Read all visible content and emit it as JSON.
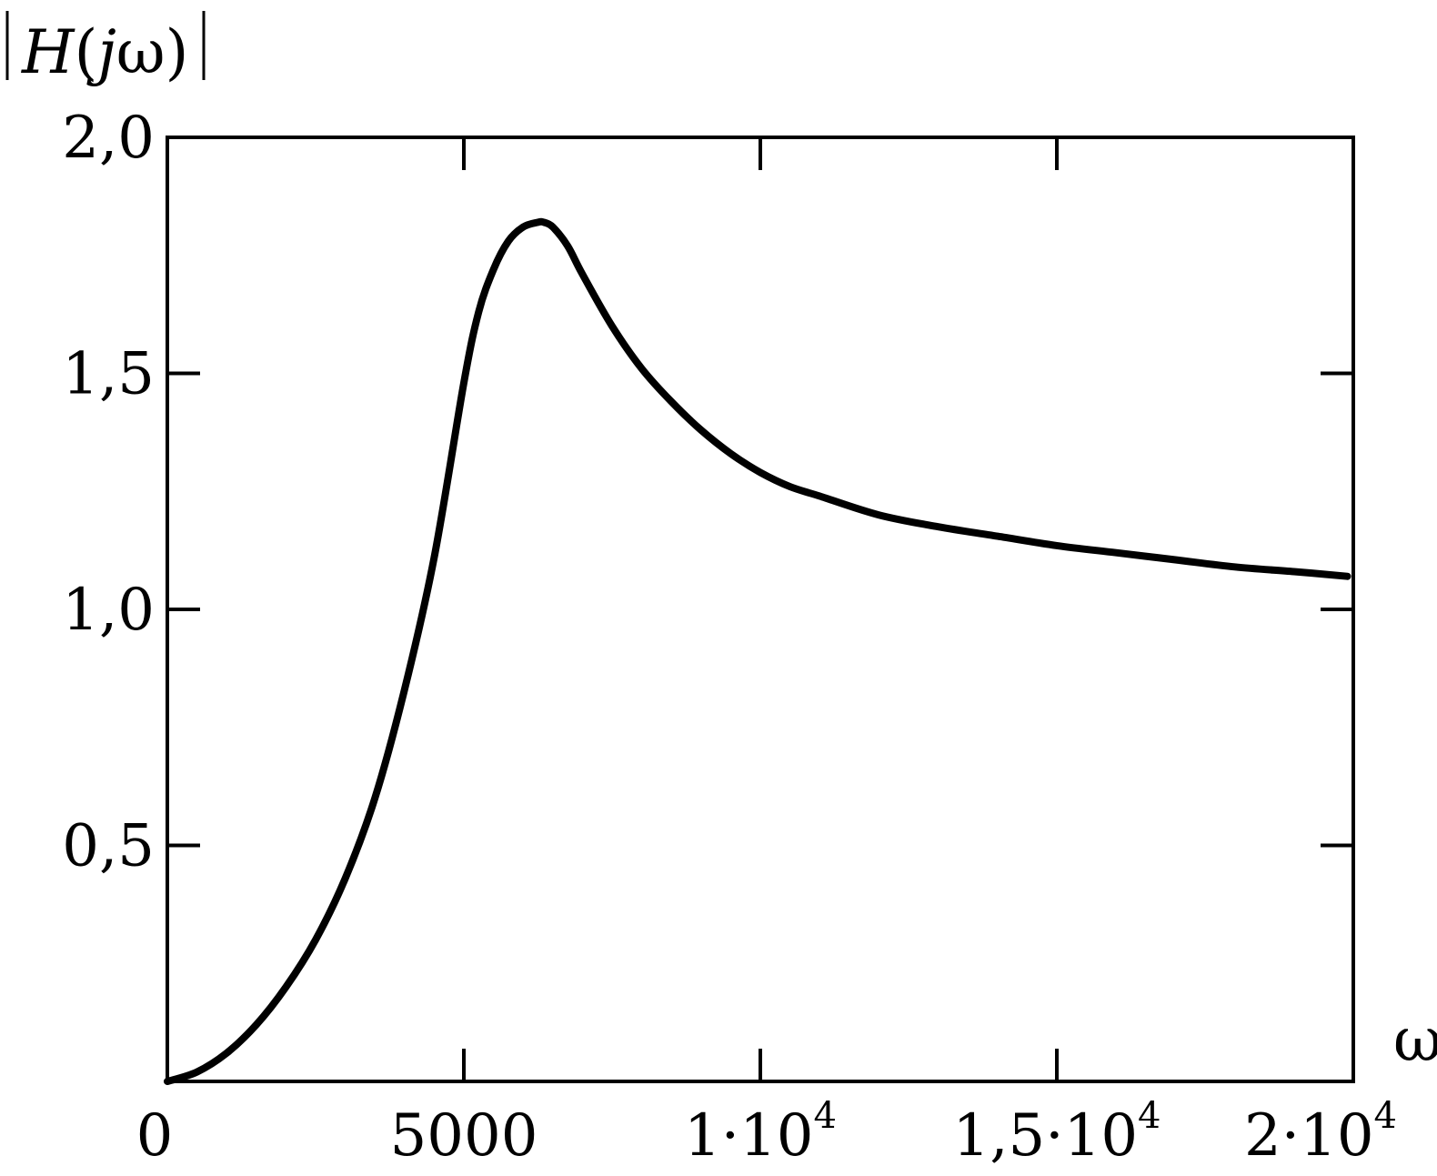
{
  "chart_data": {
    "type": "line",
    "ylabel": "|H(jω)|",
    "xlabel": "ω",
    "xlim": [
      0,
      20000
    ],
    "ylim": [
      0,
      2.0
    ],
    "grid": false,
    "x_ticks": [
      {
        "value": 0,
        "label": "0",
        "sup": ""
      },
      {
        "value": 5000,
        "label": "5000",
        "sup": ""
      },
      {
        "value": 10000,
        "label": "1·10",
        "sup": "4"
      },
      {
        "value": 15000,
        "label": "1,5·10",
        "sup": "4"
      },
      {
        "value": 20000,
        "label": "2·10",
        "sup": "4"
      }
    ],
    "y_ticks": [
      {
        "value": 0.5,
        "label": "0,5"
      },
      {
        "value": 1.0,
        "label": "1,0"
      },
      {
        "value": 1.5,
        "label": "1,5"
      },
      {
        "value": 2.0,
        "label": "2,0"
      }
    ],
    "series": [
      {
        "color": "#000000",
        "x": [
          0,
          500,
          1000,
          1500,
          2000,
          2500,
          3000,
          3500,
          4000,
          4500,
          5000,
          5250,
          5500,
          5750,
          6000,
          6250,
          6350,
          6500,
          6750,
          7000,
          7500,
          8000,
          8500,
          9000,
          9500,
          10000,
          10500,
          11000,
          12000,
          13000,
          14000,
          15000,
          16000,
          17000,
          18000,
          19000,
          19900
        ],
        "y": [
          0.0,
          0.02,
          0.06,
          0.12,
          0.2,
          0.3,
          0.43,
          0.6,
          0.83,
          1.11,
          1.48,
          1.63,
          1.72,
          1.78,
          1.81,
          1.82,
          1.82,
          1.81,
          1.77,
          1.71,
          1.6,
          1.51,
          1.44,
          1.38,
          1.33,
          1.29,
          1.26,
          1.24,
          1.2,
          1.175,
          1.155,
          1.135,
          1.12,
          1.105,
          1.09,
          1.08,
          1.07
        ]
      }
    ]
  }
}
